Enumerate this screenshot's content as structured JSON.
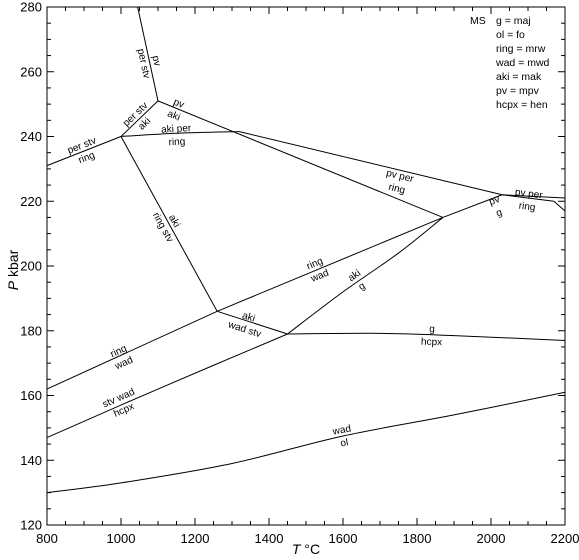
{
  "axes": {
    "x": {
      "label_var": "T",
      "label_unit": "°C",
      "range": [
        800,
        2200
      ],
      "major_ticks": [
        800,
        1000,
        1200,
        1400,
        1600,
        1800,
        2000,
        2200
      ],
      "minor_step": 50
    },
    "y": {
      "label_var": "P",
      "label_unit": "kbar",
      "range": [
        120,
        280
      ],
      "major_ticks": [
        120,
        140,
        160,
        180,
        200,
        220,
        240,
        260,
        280
      ],
      "minor_step": 5
    }
  },
  "legend": {
    "system": "MS",
    "entries": [
      "g = maj",
      "ol = fo",
      "ring = mrw",
      "wad = mwd",
      "aki = mak",
      "pv = mpv",
      "hcpx = hen"
    ]
  },
  "invariant_points": [
    {
      "T": 1000,
      "P": 240
    },
    {
      "T": 1100,
      "P": 251
    },
    {
      "T": 1260,
      "P": 186
    },
    {
      "T": 1450,
      "P": 179
    },
    {
      "T": 1870,
      "P": 215
    },
    {
      "T": 2030,
      "P": 222
    },
    {
      "T": 2170,
      "P": 220
    }
  ],
  "reactions": [
    {
      "points": [
        [
          800,
          231
        ],
        [
          1000,
          240
        ]
      ],
      "above": "per stv",
      "below": "ring",
      "label_at": [
        900,
        235.5
      ]
    },
    {
      "points": [
        [
          1000,
          240
        ],
        [
          1100,
          251
        ]
      ],
      "above": "per stv",
      "below": "aki",
      "label_at": [
        1050,
        245.5
      ]
    },
    {
      "points": [
        [
          1000,
          240
        ],
        [
          1150,
          241
        ],
        [
          1320,
          241.5
        ]
      ],
      "above": "aki per",
      "below": "ring",
      "label_at": [
        1150,
        240.5
      ]
    },
    {
      "points": [
        [
          1100,
          251
        ],
        [
          1045,
          280
        ]
      ],
      "above": "pv",
      "below": "per stv",
      "label_at": [
        1080,
        263
      ]
    },
    {
      "points": [
        [
          1100,
          251
        ],
        [
          1870,
          215
        ]
      ],
      "above": "pv",
      "below": "aki",
      "label_at": [
        1150,
        248.5
      ]
    },
    {
      "points": [
        [
          1000,
          240
        ],
        [
          1260,
          186
        ]
      ],
      "above": "aki",
      "below": "ring stv",
      "label_at": [
        1130,
        213
      ]
    },
    {
      "points": [
        [
          1320,
          241.5
        ],
        [
          2030,
          222
        ]
      ],
      "above": "pv per",
      "below": "ring",
      "label_at": [
        1750,
        226
      ]
    },
    {
      "points": [
        [
          2030,
          222
        ],
        [
          2170,
          220
        ]
      ],
      "above": "pv per",
      "below": "ring",
      "label_at": [
        2100,
        220.5
      ]
    },
    {
      "points": [
        [
          1870,
          215
        ],
        [
          2030,
          222
        ]
      ],
      "above": "pv",
      "below": "g",
      "label_at": [
        2015,
        218.5
      ]
    },
    {
      "points": [
        [
          2030,
          222
        ],
        [
          2200,
          221
        ]
      ],
      "above": "",
      "below": "",
      "label_at": null
    },
    {
      "points": [
        [
          2170,
          220
        ],
        [
          2200,
          217
        ]
      ],
      "above": "",
      "below": "",
      "label_at": null
    },
    {
      "points": [
        [
          1260,
          186
        ],
        [
          1870,
          215
        ]
      ],
      "above": "ring",
      "below": "wad",
      "label_at": [
        1530,
        199
      ]
    },
    {
      "points": [
        [
          1260,
          186
        ],
        [
          1450,
          179
        ]
      ],
      "above": "aki",
      "below": "wad stv",
      "label_at": [
        1340,
        182.5
      ]
    },
    {
      "points": [
        [
          1450,
          179
        ],
        [
          1600,
          192
        ],
        [
          1750,
          204
        ],
        [
          1870,
          215
        ]
      ],
      "above": "aki",
      "below": "g",
      "label_at": [
        1640,
        195.5
      ]
    },
    {
      "points": [
        [
          800,
          162
        ],
        [
          1260,
          186
        ]
      ],
      "above": "ring",
      "below": "wad",
      "label_at": [
        1000,
        172
      ]
    },
    {
      "points": [
        [
          800,
          147
        ],
        [
          1100,
          162
        ],
        [
          1450,
          179
        ]
      ],
      "above": "stv wad",
      "below": "hcpx",
      "label_at": [
        1000,
        157.5
      ]
    },
    {
      "points": [
        [
          1450,
          179
        ],
        [
          1700,
          179.2
        ],
        [
          1900,
          178.5
        ],
        [
          2200,
          177
        ]
      ],
      "above": "g",
      "below": "hcpx",
      "label_at": [
        1840,
        178.7
      ]
    },
    {
      "points": [
        [
          800,
          130
        ],
        [
          1000,
          133
        ],
        [
          1300,
          139
        ],
        [
          1600,
          147.5
        ],
        [
          1900,
          154
        ],
        [
          2200,
          161
        ]
      ],
      "above": "wad",
      "below": "ol",
      "label_at": [
        1600,
        147.5
      ]
    }
  ]
}
